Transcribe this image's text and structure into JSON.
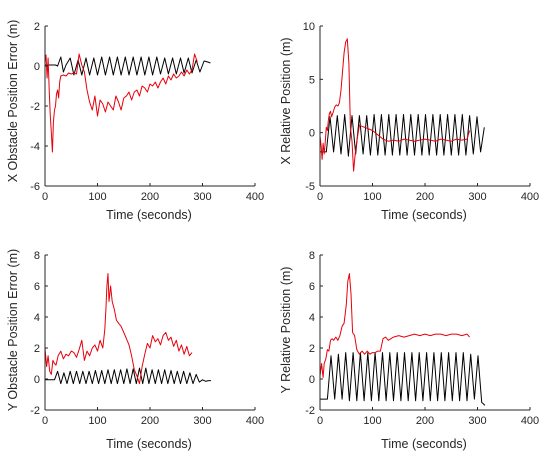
{
  "colors": {
    "series_a": "#000000",
    "series_b": "#e8000b",
    "axes": "#262626"
  },
  "chart_data": [
    {
      "type": "line",
      "xlabel": "Time (seconds)",
      "ylabel": "X Obstacle Position Error (m)",
      "xlim": [
        0,
        400
      ],
      "ylim": [
        -6,
        2
      ],
      "xticks": [
        "0",
        "100",
        "200",
        "300",
        "400"
      ],
      "yticks": [
        "-6",
        "-4",
        "-2",
        "0",
        "2"
      ],
      "grid": false,
      "series": [
        {
          "color": "#000000",
          "x": [
            0,
            10,
            20,
            24,
            30,
            35,
            40,
            48,
            55,
            63,
            70,
            78,
            85,
            93,
            100,
            108,
            115,
            123,
            130,
            138,
            145,
            153,
            160,
            168,
            175,
            183,
            190,
            198,
            205,
            213,
            220,
            228,
            235,
            243,
            250,
            258,
            265,
            273,
            280,
            288,
            295,
            303,
            310,
            315
          ],
          "y": [
            0.05,
            0.05,
            0.05,
            0.0,
            0.45,
            -0.3,
            0.05,
            0.4,
            -0.45,
            0.3,
            -0.45,
            0.4,
            -0.45,
            0.4,
            -0.45,
            0.45,
            -0.45,
            0.45,
            -0.45,
            0.45,
            -0.45,
            0.45,
            -0.45,
            0.45,
            -0.45,
            0.45,
            -0.45,
            0.45,
            -0.45,
            0.45,
            -0.4,
            0.4,
            -0.4,
            0.4,
            -0.4,
            0.4,
            -0.35,
            0.4,
            -0.35,
            0.3,
            -0.3,
            0.25,
            0.2,
            0.15
          ]
        },
        {
          "color": "#e8000b",
          "x": [
            0,
            2,
            4,
            6,
            8,
            10,
            12,
            14,
            16,
            18,
            20,
            22,
            24,
            26,
            28,
            30,
            35,
            40,
            45,
            50,
            55,
            60,
            65,
            70,
            75,
            80,
            85,
            90,
            95,
            100,
            105,
            110,
            115,
            120,
            125,
            130,
            135,
            140,
            145,
            150,
            155,
            160,
            165,
            170,
            175,
            180,
            185,
            190,
            195,
            200,
            205,
            210,
            215,
            220,
            225,
            230,
            235,
            240,
            245,
            250,
            255,
            260,
            265,
            270,
            275,
            280,
            285,
            290
          ],
          "y": [
            0.2,
            0.55,
            -0.6,
            0.4,
            -1.2,
            -2.5,
            -3.3,
            -4.3,
            -2.8,
            -2.2,
            -2.0,
            -1.4,
            -1.2,
            -1.6,
            -0.8,
            -0.5,
            -0.45,
            -0.5,
            -0.35,
            -0.4,
            -0.35,
            -0.4,
            0.6,
            0.05,
            -0.3,
            -1.2,
            -1.8,
            -2.2,
            -1.5,
            -2.5,
            -1.7,
            -1.9,
            -2.3,
            -1.8,
            -2.0,
            -2.2,
            -1.5,
            -1.8,
            -2.2,
            -1.6,
            -1.5,
            -1.3,
            -1.7,
            -1.3,
            -1.2,
            -1.5,
            -1.0,
            -1.1,
            -1.3,
            -0.9,
            -1.0,
            -0.8,
            -1.1,
            -0.8,
            -0.6,
            -0.9,
            -0.5,
            -0.7,
            -0.4,
            -0.6,
            -0.5,
            -0.3,
            -0.5,
            -0.2,
            -0.4,
            -0.2,
            0.6,
            0.2
          ]
        }
      ]
    },
    {
      "type": "line",
      "xlabel": "Time (seconds)",
      "ylabel": "X Relative Position (m)",
      "xlim": [
        0,
        400
      ],
      "ylim": [
        -5,
        10
      ],
      "xticks": [
        "0",
        "100",
        "200",
        "300",
        "400"
      ],
      "yticks": [
        "-5",
        "0",
        "5",
        "10"
      ],
      "grid": false,
      "series": [
        {
          "color": "#000000",
          "x": [
            0,
            5,
            10,
            12,
            19,
            26,
            33,
            40,
            47,
            54,
            61,
            68,
            75,
            82,
            89,
            96,
            103,
            110,
            117,
            124,
            131,
            138,
            145,
            152,
            159,
            166,
            173,
            180,
            187,
            194,
            201,
            208,
            215,
            222,
            229,
            236,
            243,
            250,
            257,
            264,
            271,
            278,
            285,
            292,
            299,
            306,
            313
          ],
          "y": [
            -1.8,
            -1.8,
            -1.8,
            -1.8,
            1.5,
            -1.8,
            1.6,
            -2.0,
            1.7,
            -2.2,
            1.6,
            -2.0,
            1.6,
            -2.0,
            1.6,
            -2.1,
            1.7,
            -2.1,
            1.7,
            -2.1,
            1.7,
            -2.1,
            1.7,
            -2.1,
            1.7,
            -2.1,
            1.7,
            -2.1,
            1.7,
            -2.1,
            1.7,
            -2.1,
            1.7,
            -2.1,
            1.7,
            -2.1,
            1.7,
            -2.1,
            1.7,
            -2.1,
            1.7,
            -2.1,
            1.6,
            -2.0,
            1.5,
            -1.8,
            0.5
          ]
        },
        {
          "color": "#e8000b",
          "x": [
            0,
            2,
            4,
            6,
            8,
            10,
            12,
            14,
            16,
            18,
            20,
            22,
            25,
            28,
            31,
            34,
            37,
            40,
            43,
            46,
            49,
            52,
            55,
            58,
            61,
            64,
            67,
            70,
            75,
            80,
            90,
            100,
            110,
            120,
            130,
            140,
            150,
            160,
            170,
            180,
            190,
            200,
            210,
            220,
            230,
            240,
            250,
            260,
            270,
            280,
            285
          ],
          "y": [
            -0.3,
            -1.2,
            -2.5,
            -1.0,
            -2.0,
            -0.8,
            0.5,
            0.2,
            1.2,
            1.8,
            2.0,
            1.5,
            1.9,
            2.4,
            2.6,
            2.5,
            2.8,
            4.0,
            5.8,
            7.5,
            8.5,
            8.8,
            6.5,
            0.5,
            -0.8,
            -3.6,
            -2.0,
            -0.8,
            0.7,
            0.6,
            0.4,
            0.2,
            -0.2,
            -0.6,
            -0.8,
            -0.7,
            -0.8,
            -0.6,
            -0.7,
            -0.8,
            -0.7,
            -0.6,
            -0.7,
            -0.8,
            -0.6,
            -0.7,
            -0.8,
            -0.6,
            -0.7,
            -0.6,
            0.2
          ]
        }
      ]
    },
    {
      "type": "line",
      "xlabel": "Time (seconds)",
      "ylabel": "Y Obstacle Position Error (m)",
      "xlim": [
        0,
        400
      ],
      "ylim": [
        -2,
        8
      ],
      "xticks": [
        "0",
        "100",
        "200",
        "300",
        "400"
      ],
      "yticks": [
        "-2",
        "0",
        "2",
        "4",
        "6",
        "8"
      ],
      "grid": false,
      "series": [
        {
          "color": "#000000",
          "x": [
            0,
            10,
            18,
            24,
            30,
            36,
            42,
            48,
            54,
            60,
            66,
            72,
            78,
            84,
            90,
            96,
            102,
            108,
            114,
            120,
            126,
            132,
            138,
            144,
            150,
            156,
            162,
            168,
            174,
            180,
            186,
            192,
            198,
            204,
            210,
            216,
            222,
            228,
            234,
            240,
            246,
            252,
            258,
            264,
            270,
            276,
            282,
            288,
            294,
            300,
            306,
            312,
            316
          ],
          "y": [
            -0.05,
            -0.05,
            -0.05,
            0.5,
            -0.3,
            0.4,
            -0.3,
            0.5,
            -0.3,
            0.5,
            -0.3,
            0.5,
            -0.3,
            0.5,
            -0.3,
            0.55,
            -0.3,
            0.55,
            -0.3,
            0.6,
            -0.3,
            0.6,
            -0.3,
            0.6,
            -0.3,
            0.65,
            -0.3,
            0.65,
            -0.3,
            0.7,
            -0.3,
            0.7,
            -0.3,
            0.6,
            -0.3,
            0.6,
            -0.3,
            0.6,
            -0.3,
            0.55,
            -0.3,
            0.5,
            -0.3,
            0.5,
            -0.3,
            0.4,
            -0.3,
            0.3,
            -0.2,
            -0.05,
            -0.15,
            -0.1,
            -0.1
          ]
        },
        {
          "color": "#e8000b",
          "x": [
            0,
            3,
            6,
            9,
            12,
            15,
            18,
            21,
            25,
            30,
            35,
            40,
            45,
            50,
            55,
            60,
            65,
            70,
            75,
            80,
            85,
            90,
            95,
            100,
            105,
            110,
            114,
            116,
            118,
            120,
            122,
            125,
            128,
            132,
            136,
            140,
            145,
            150,
            155,
            160,
            165,
            170,
            175,
            180,
            185,
            190,
            195,
            200,
            205,
            210,
            215,
            220,
            225,
            230,
            235,
            240,
            245,
            250,
            255,
            260,
            265,
            270,
            275,
            280
          ],
          "y": [
            2.0,
            0.8,
            1.5,
            0.5,
            0.3,
            1.2,
            1.0,
            0.9,
            1.5,
            1.8,
            1.3,
            1.6,
            1.5,
            1.8,
            1.7,
            1.4,
            1.9,
            2.5,
            1.2,
            1.8,
            1.5,
            2.0,
            2.2,
            1.8,
            2.5,
            2.0,
            3.2,
            4.5,
            6.0,
            6.8,
            5.0,
            6.0,
            5.0,
            4.5,
            3.8,
            3.6,
            3.4,
            3.0,
            2.6,
            2.2,
            1.5,
            0.6,
            0.2,
            -0.3,
            0.8,
            1.6,
            2.3,
            2.0,
            2.8,
            2.4,
            2.6,
            2.2,
            2.8,
            3.0,
            2.5,
            2.7,
            2.1,
            2.5,
            1.8,
            2.2,
            1.6,
            2.1,
            1.5,
            1.7
          ]
        }
      ]
    },
    {
      "type": "line",
      "xlabel": "Time (seconds)",
      "ylabel": "Y Relative Position (m)",
      "xlim": [
        0,
        400
      ],
      "ylim": [
        -2,
        8
      ],
      "xticks": [
        "0",
        "100",
        "200",
        "300",
        "400"
      ],
      "yticks": [
        "-2",
        "0",
        "2",
        "4",
        "6",
        "8"
      ],
      "grid": false,
      "series": [
        {
          "color": "#000000",
          "x": [
            0,
            10,
            14,
            21,
            28,
            35,
            42,
            49,
            56,
            63,
            70,
            77,
            84,
            91,
            98,
            105,
            112,
            119,
            126,
            133,
            140,
            147,
            154,
            161,
            168,
            175,
            182,
            189,
            196,
            203,
            210,
            217,
            224,
            231,
            238,
            245,
            252,
            259,
            266,
            273,
            280,
            287,
            294,
            301,
            308,
            314
          ],
          "y": [
            -1.3,
            -1.3,
            -1.3,
            1.5,
            -1.3,
            1.6,
            -1.3,
            1.7,
            -1.4,
            1.7,
            -1.4,
            1.7,
            -1.4,
            1.7,
            -1.4,
            1.7,
            -1.4,
            1.7,
            -1.4,
            1.7,
            -1.4,
            1.7,
            -1.4,
            1.7,
            -1.4,
            1.7,
            -1.4,
            1.7,
            -1.4,
            1.7,
            -1.4,
            1.7,
            -1.4,
            1.7,
            -1.4,
            1.7,
            -1.4,
            1.7,
            -1.4,
            1.7,
            -1.4,
            1.6,
            -1.3,
            1.5,
            -1.5,
            -1.7
          ]
        },
        {
          "color": "#e8000b",
          "x": [
            0,
            3,
            6,
            8,
            11,
            14,
            17,
            20,
            23,
            26,
            30,
            34,
            38,
            42,
            46,
            50,
            53,
            56,
            59,
            62,
            66,
            70,
            75,
            80,
            85,
            90,
            95,
            100,
            105,
            110,
            115,
            120,
            125,
            130,
            140,
            150,
            160,
            170,
            180,
            190,
            200,
            210,
            220,
            230,
            240,
            250,
            260,
            270,
            280,
            285
          ],
          "y": [
            0.2,
            1.0,
            0.1,
            1.0,
            1.3,
            1.9,
            1.8,
            2.5,
            2.6,
            2.5,
            2.7,
            2.5,
            2.8,
            3.4,
            3.6,
            4.8,
            6.3,
            6.8,
            5.5,
            3.0,
            2.8,
            1.9,
            1.6,
            1.8,
            1.6,
            1.8,
            1.6,
            1.7,
            1.7,
            1.8,
            1.8,
            2.6,
            2.7,
            2.5,
            2.7,
            2.8,
            2.7,
            2.8,
            2.9,
            2.8,
            2.9,
            2.8,
            2.9,
            2.9,
            2.8,
            2.9,
            2.9,
            2.8,
            2.9,
            2.7
          ]
        }
      ]
    }
  ]
}
